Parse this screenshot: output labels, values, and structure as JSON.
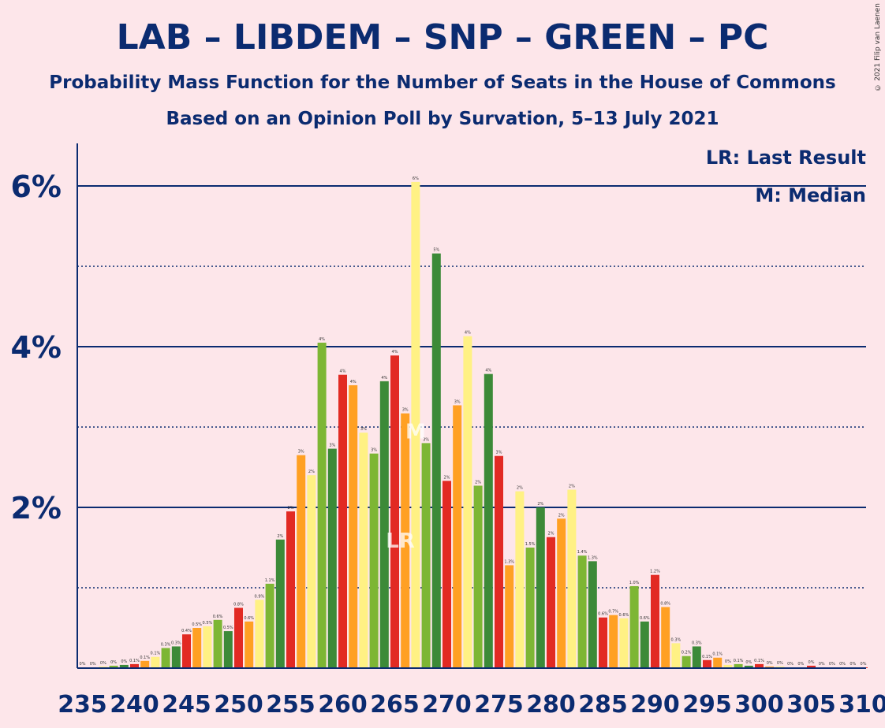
{
  "title": "LAB – LIBDEM – SNP – GREEN – PC",
  "subtitle1": "Probability Mass Function for the Number of Seats in the House of Commons",
  "subtitle2": "Based on an Opinion Poll by Survation, 5–13 July 2021",
  "copyright": "© 2021 Filip van Laenen",
  "legend": {
    "lr": "LR: Last Result",
    "m": "M: Median"
  },
  "markers": {
    "lr_label": "LR",
    "m_label": "M",
    "lr_seat": 265,
    "median_seat": 267
  },
  "colors": {
    "red": "#E22A23",
    "orange": "#FFA023",
    "yellow": "#FFF184",
    "lightgreen": "#7DB634",
    "darkgreen": "#3C8A38",
    "axis": "#0B2B70"
  },
  "chart_data": {
    "type": "bar",
    "xlabel": "",
    "ylabel": "",
    "ylim": [
      0,
      6.5
    ],
    "y_ticks": [
      "2%",
      "4%",
      "6%"
    ],
    "x_ticks": [
      "235",
      "240",
      "245",
      "250",
      "255",
      "260",
      "265",
      "270",
      "275",
      "280",
      "285",
      "290",
      "295",
      "300",
      "305",
      "310"
    ],
    "x": [
      235,
      236,
      237,
      238,
      239,
      240,
      241,
      242,
      243,
      244,
      245,
      246,
      247,
      248,
      249,
      250,
      251,
      252,
      253,
      254,
      255,
      256,
      257,
      258,
      259,
      260,
      261,
      262,
      263,
      264,
      265,
      266,
      267,
      268,
      269,
      270,
      271,
      272,
      273,
      274,
      275,
      276,
      277,
      278,
      279,
      280,
      281,
      282,
      283,
      284,
      285,
      286,
      287,
      288,
      289,
      290,
      291,
      292,
      293,
      294,
      295,
      296,
      297,
      298,
      299,
      300,
      301,
      302,
      303,
      304,
      305,
      306,
      307,
      308,
      309,
      310
    ],
    "values": [
      0.01,
      0.01,
      0.02,
      0.03,
      0.04,
      0.05,
      0.09,
      0.14,
      0.25,
      0.27,
      0.42,
      0.5,
      0.52,
      0.6,
      0.46,
      0.75,
      0.58,
      0.85,
      1.05,
      1.6,
      1.95,
      2.65,
      2.4,
      4.05,
      2.73,
      3.65,
      3.52,
      2.93,
      2.67,
      3.57,
      3.89,
      3.17,
      6.05,
      2.8,
      5.16,
      2.33,
      3.27,
      4.13,
      2.27,
      3.66,
      2.64,
      1.28,
      2.2,
      1.5,
      2.0,
      1.63,
      1.86,
      2.22,
      1.4,
      1.33,
      0.63,
      0.66,
      0.62,
      1.02,
      0.58,
      1.16,
      0.76,
      0.31,
      0.15,
      0.27,
      0.1,
      0.13,
      0.04,
      0.05,
      0.03,
      0.05,
      0.02,
      0.02,
      0.01,
      0.01,
      0.03,
      0.01,
      0.01,
      0.01,
      0.01,
      0.01
    ],
    "data_labels": [
      "0%",
      "0%",
      "0%",
      "0%",
      "0%",
      "0.1%",
      "0.1%",
      "0.1%",
      "0.3%",
      "0.3%",
      "0.4%",
      "0.5%",
      "0.5%",
      "0.6%",
      "0.5%",
      "0.8%",
      "0.6%",
      "0.9%",
      "1.1%",
      "2%",
      "2%",
      "3%",
      "2%",
      "4%",
      "3%",
      "4%",
      "4%",
      "3%",
      "3%",
      "4%",
      "4%",
      "3%",
      "6%",
      "3%",
      "5%",
      "2%",
      "3%",
      "4%",
      "2%",
      "4%",
      "3%",
      "1.3%",
      "2%",
      "1.5%",
      "2%",
      "2%",
      "2%",
      "2%",
      "1.4%",
      "1.3%",
      "0.6%",
      "0.7%",
      "0.6%",
      "1.0%",
      "0.6%",
      "1.2%",
      "0.8%",
      "0.3%",
      "0.2%",
      "0.3%",
      "0.1%",
      "0.1%",
      "0%",
      "0.1%",
      "0%",
      "0.1%",
      "0%",
      "0%",
      "0%",
      "0%",
      "0%",
      "0%",
      "0%",
      "0%",
      "0%",
      "0%"
    ],
    "color_cycle": [
      "red",
      "orange",
      "yellow",
      "lightgreen",
      "darkgreen"
    ],
    "gridlines": [
      1,
      3,
      5
    ],
    "major_lines": [
      2,
      4,
      6
    ]
  }
}
